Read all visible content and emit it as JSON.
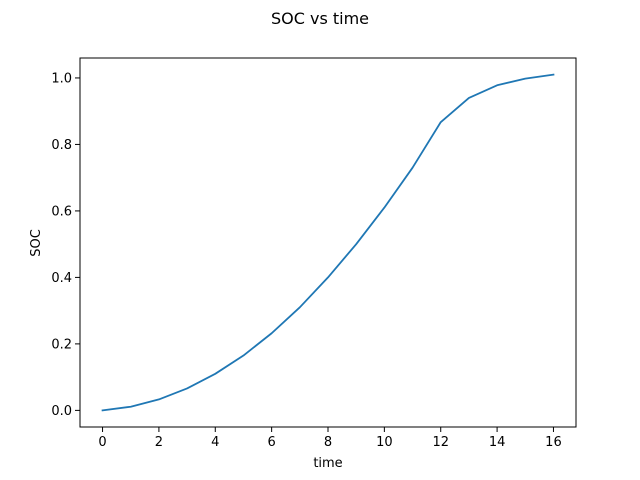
{
  "chart_data": {
    "type": "line",
    "title": "SOC vs time",
    "xlabel": "time",
    "ylabel": "SOC",
    "x": [
      0,
      1,
      2,
      3,
      4,
      5,
      6,
      7,
      8,
      9,
      10,
      11,
      12,
      13,
      14,
      15,
      16
    ],
    "series": [
      {
        "values": [
          0.0,
          0.011,
          0.033,
          0.066,
          0.11,
          0.165,
          0.232,
          0.31,
          0.4,
          0.5,
          0.61,
          0.73,
          0.867,
          0.94,
          0.978,
          0.998,
          1.01
        ],
        "color": "#1f77b4"
      }
    ],
    "xlim": [
      -0.8,
      16.8
    ],
    "ylim": [
      -0.05,
      1.06
    ],
    "xticks": [
      0,
      2,
      4,
      6,
      8,
      10,
      12,
      14,
      16
    ],
    "yticks": [
      0.0,
      0.2,
      0.4,
      0.6,
      0.8,
      1.0
    ],
    "ytick_labels": [
      "0.0",
      "0.2",
      "0.4",
      "0.6",
      "0.8",
      "1.0"
    ],
    "grid": false
  }
}
